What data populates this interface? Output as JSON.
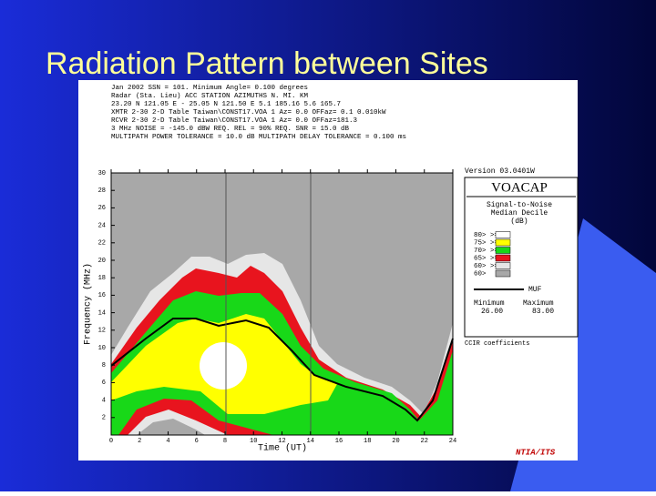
{
  "slide": {
    "title": "Radiation Pattern between Sites"
  },
  "header": {
    "lines": [
      "Jan   2002       SSN = 101.       Minimum Angle= 0.100 degrees",
      "Radar  (Sta. Lieu)  ACC  STATION          AZIMUTHS        N. MI.      KM",
      "23.20 N  121.05 E - 25.05 N  121.50 E       5.1  185.16     5.6    165.7",
      "XMTR  2-30 2-D Table  Taiwan\\CONST17.VOA  1 Az=  0.0 OFFaz=  0.1   0.010kW",
      "RCVR  2-30 2-D Table  Taiwan\\CONST17.VOA  1 Az=  0.0 OFFaz=181.3",
      "3 MHz NOISE = -145.0 dBW   REQ. REL = 90%   REQ. SNR = 15.0 dB",
      "MULTIPATH POWER TOLERANCE = 10.0 dB   MULTIPATH DELAY TOLERANCE = 0.100 ms"
    ]
  },
  "plot": {
    "y_label": "Frequency (MHz)",
    "x_label": "Time (UT)",
    "y_ticks": [
      "30",
      "28",
      "26",
      "24",
      "22",
      "20",
      "18",
      "16",
      "14",
      "12",
      "10",
      "8",
      "6",
      "4",
      "2"
    ],
    "x_ticks": [
      "0",
      "2",
      "4",
      "6",
      "8",
      "10",
      "12",
      "14",
      "16",
      "18",
      "20",
      "22",
      "24"
    ]
  },
  "panel": {
    "version": "Version 03.0401W",
    "brand": "VOACAP",
    "legend_title": [
      "Signal-to-Noise",
      "Median Decile",
      "(dB)"
    ],
    "legend_rows": [
      "80>  >=  80",
      "75>  >=  75",
      "70>  >=  70",
      "65>  >=  65",
      "60>  >=  60",
      "60>"
    ],
    "muf": "MUF",
    "min_label": "Minimum",
    "max_label": "Maximum",
    "min_value": "26.00",
    "max_value": "83.00",
    "coefficients": "CCIR coefficients",
    "footer": "NTIA/ITS"
  }
}
